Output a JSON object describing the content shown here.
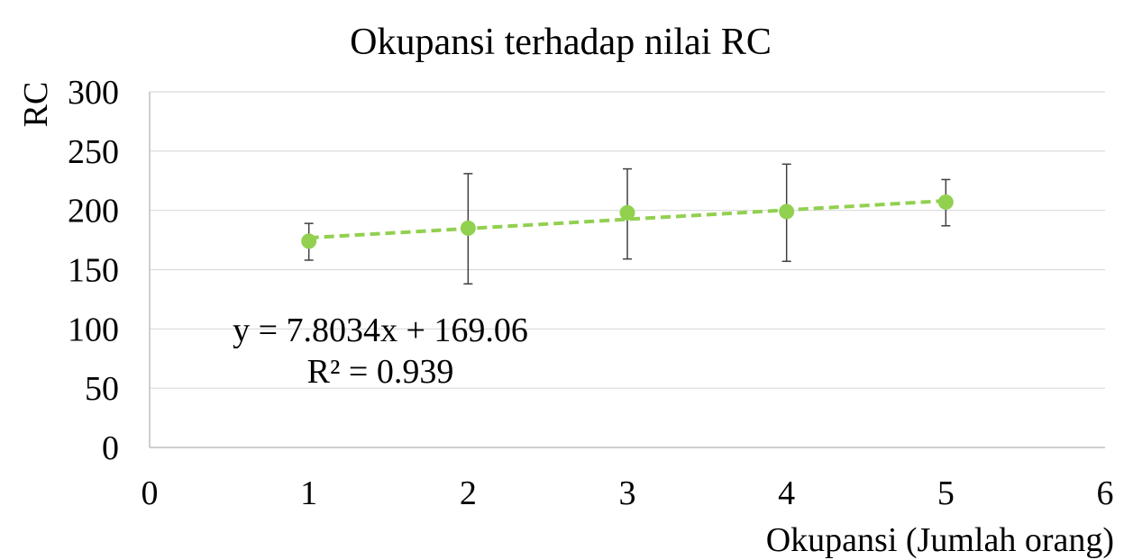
{
  "chart_data": {
    "type": "scatter",
    "title": "Okupansi terhadap nilai RC",
    "xlabel": "Okupansi (Jumlah orang)",
    "ylabel": "RC",
    "xlim": [
      0,
      6
    ],
    "ylim": [
      0,
      300
    ],
    "x_ticks": [
      "0",
      "1",
      "2",
      "3",
      "4",
      "5",
      "6"
    ],
    "y_ticks": [
      "0",
      "50",
      "100",
      "150",
      "200",
      "250",
      "300"
    ],
    "grid": "horizontal",
    "series": [
      {
        "x": [
          1,
          2,
          3,
          4,
          5
        ],
        "y": [
          174,
          185,
          198,
          199,
          207
        ],
        "error_low": [
          158,
          138,
          159,
          157,
          187
        ],
        "error_high": [
          189,
          231,
          235,
          239,
          226
        ],
        "color": "#92D050"
      }
    ],
    "trendline": {
      "type": "linear",
      "slope": 7.8034,
      "intercept": 169.06,
      "x_range": [
        1,
        5
      ],
      "color": "#92D050",
      "style": "dashed",
      "equation_label": "y = 7.8034x + 169.06",
      "r2_label": "R² = 0.939"
    },
    "colors": {
      "grid": "#d9d9d9",
      "axis": "#bfbfbf",
      "error_bar": "#404040"
    }
  }
}
